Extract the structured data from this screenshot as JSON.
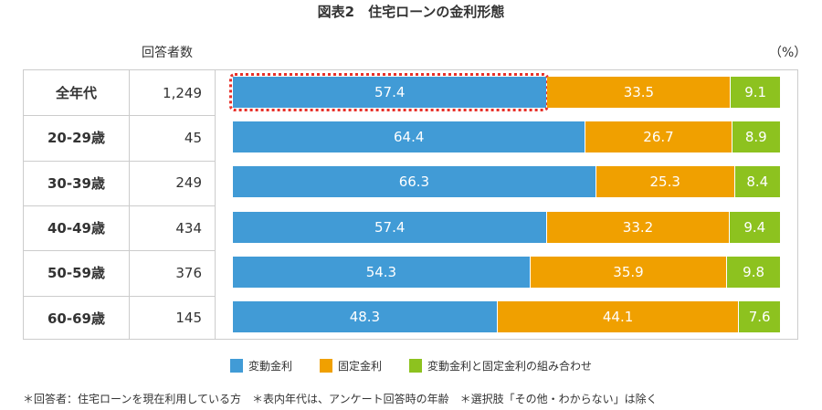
{
  "title": "図表2　住宅ローンの金利形態",
  "header": {
    "respondents_label": "回答者数",
    "unit": "（%）"
  },
  "chart_data": {
    "type": "bar",
    "stacked": true,
    "orientation": "horizontal",
    "categories": [
      "全年代",
      "20-29歳",
      "30-39歳",
      "40-49歳",
      "50-59歳",
      "60-69歳"
    ],
    "respondents": [
      "1,249",
      "45",
      "249",
      "434",
      "376",
      "145"
    ],
    "series": [
      {
        "name": "変動金利",
        "color": "#419bd6",
        "values": [
          57.4,
          64.4,
          66.3,
          57.4,
          54.3,
          48.3
        ]
      },
      {
        "name": "固定金利",
        "color": "#f0a000",
        "values": [
          33.5,
          26.7,
          25.3,
          33.2,
          35.9,
          44.1
        ]
      },
      {
        "name": "変動金利と固定金利の組み合わせ",
        "color": "#8dc21f",
        "values": [
          9.1,
          8.9,
          8.4,
          9.4,
          9.8,
          7.6
        ]
      }
    ],
    "xlim": [
      0,
      100
    ],
    "legend": "bottom",
    "highlight": {
      "category": "全年代",
      "series": "変動金利",
      "color": "#e8312a"
    }
  },
  "note": "＊回答者：住宅ローンを現在利用している方　＊表内年代は、アンケート回答時の年齢　＊選択肢「その他・わからない」は除く"
}
